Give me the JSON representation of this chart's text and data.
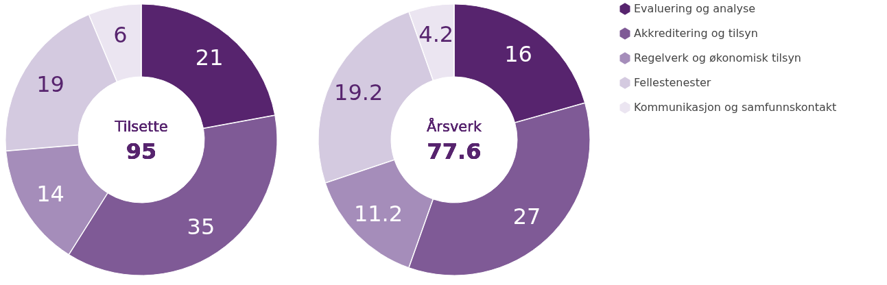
{
  "chart_data": [
    {
      "type": "donut",
      "title": "Tilsette",
      "subtitle": "95",
      "categories": [
        null,
        null,
        null,
        null,
        null
      ],
      "values": [
        21,
        35,
        14,
        19,
        6
      ],
      "colors": [
        "#57246e",
        "#7f5a96",
        "#a58dba",
        "#d4cae0",
        "#ebe5f1"
      ],
      "data_labels": true,
      "legend": false
    },
    {
      "type": "donut",
      "title": "Årsverk",
      "subtitle": "77.6",
      "categories": [
        "Evaluering og analyse",
        "Akkreditering og tilsyn",
        "Regelverk og økonomisk tilsyn",
        "Fellestenester",
        "Kommunikasjon og samfunnskontakt"
      ],
      "values": [
        16,
        27,
        11.2,
        19.2,
        4.2
      ],
      "colors": [
        "#57246e",
        "#7f5a96",
        "#a58dba",
        "#d4cae0",
        "#ebe5f1"
      ],
      "data_labels": true,
      "legend": "right"
    }
  ]
}
